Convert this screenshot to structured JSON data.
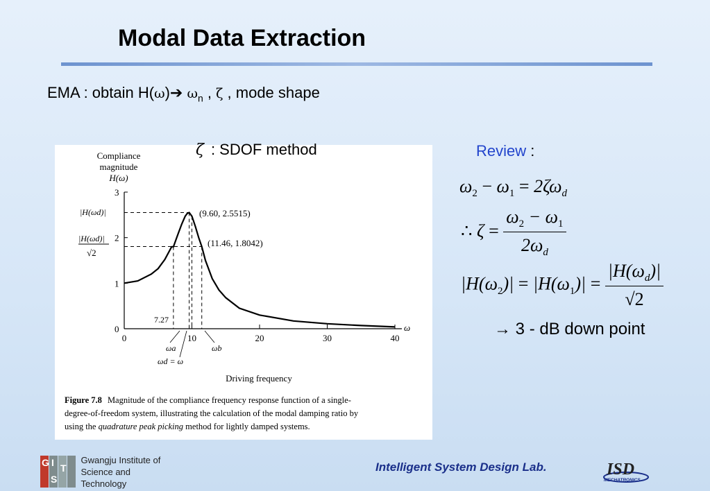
{
  "title": "Modal Data Extraction",
  "subtitle": {
    "prefix": "EMA : obtain H(",
    "omega": "ω",
    "close": ")",
    "arrow": "➔",
    "omega_n": "ω",
    "n_sub": "n",
    "sep1": " , ",
    "zeta": "ζ",
    "suffix": " , mode shape"
  },
  "sdof": {
    "zeta": "ζ",
    "label": ": SDOF method"
  },
  "review": {
    "label": "Review",
    "colon": " :"
  },
  "equations": {
    "eq1": {
      "w2": "ω",
      "s2": "2",
      "minus": "−",
      "w1": "ω",
      "s1": "1",
      "eq": "=",
      "rhs": "2ζω",
      "sd": "d"
    },
    "eq2": {
      "therefore": "∴",
      "zeta": "ζ",
      "eq": "=",
      "num": "ω",
      "ns2": "2",
      "nminus": " − ω",
      "ns1": "1",
      "den": "2ω",
      "dsd": "d"
    },
    "eq3": {
      "lhs1": "|H(ω",
      "ls2": "2",
      "lhs1b": ")|",
      "eq": "=",
      "lhs2": "|H(ω",
      "ls1": "1",
      "lhs2b": ")|",
      "eq2": "=",
      "num": "|H(ω",
      "nsd": "d",
      "numb": ")|",
      "den": "√2"
    }
  },
  "down_point": {
    "arrow": "→",
    "text": "3 - dB down point"
  },
  "figure": {
    "ylabel_line1": "Compliance",
    "ylabel_line2": "magnitude",
    "ylabel_line3": "H(ω)",
    "y_label_peak": "|H(ωd)|",
    "y_label_half_num": "|H(ωd)|",
    "y_label_half_den": "√2",
    "peak_label": "(9.60, 2.5515)",
    "half_label": "(11.46, 1.8042)",
    "label_727": "7.27",
    "omega_a": "ωa",
    "omega_b": "ωb",
    "omega_d_eq": "ωd = ω",
    "x_axis_symbol": "ω",
    "xlabel": "Driving frequency",
    "caption_bold": "Figure 7.8",
    "caption_line1": "Magnitude of the compliance frequency response function of a single-",
    "caption_line2": "degree-of-freedom system, illustrating the calculation of the modal damping ratio by",
    "caption_line3_a": "using the ",
    "caption_line3_i": "quadrature peak picking",
    "caption_line3_b": " method for lightly damped systems."
  },
  "chart_data": {
    "type": "line",
    "x_ticks": [
      0,
      10,
      20,
      30,
      40
    ],
    "y_ticks": [
      0,
      1,
      2,
      3
    ],
    "xlim": [
      0,
      40
    ],
    "ylim": [
      0,
      3
    ],
    "series": [
      {
        "x": [
          0,
          2,
          4,
          5,
          6,
          7,
          7.27,
          8,
          8.5,
          9,
          9.3,
          9.6,
          10,
          10.5,
          11,
          11.46,
          12,
          13,
          14,
          15,
          17,
          20,
          25,
          30,
          35,
          40
        ],
        "values": [
          1.0,
          1.05,
          1.2,
          1.32,
          1.52,
          1.8,
          1.8,
          2.1,
          2.3,
          2.47,
          2.53,
          2.5515,
          2.47,
          2.25,
          2.0,
          1.8042,
          1.5,
          1.1,
          0.85,
          0.68,
          0.45,
          0.3,
          0.17,
          0.11,
          0.07,
          0.04
        ]
      }
    ],
    "annotations": [
      {
        "x": 9.6,
        "y": 2.5515,
        "label": "(9.60, 2.5515)"
      },
      {
        "x": 11.46,
        "y": 1.8042,
        "label": "(11.46, 1.8042)"
      },
      {
        "x": 7.27,
        "label": "7.27"
      }
    ]
  },
  "footer": {
    "gist_g": "G",
    "gist_i": "I",
    "gist_s": "S",
    "gist_t": "T",
    "gist_line1": "Gwangju Institute of",
    "gist_line2": "Science and Technology",
    "lab_name": "Intelligent System Design Lab.",
    "isd_logo": "ISD",
    "isd_sub": "MECHATRONICS"
  }
}
